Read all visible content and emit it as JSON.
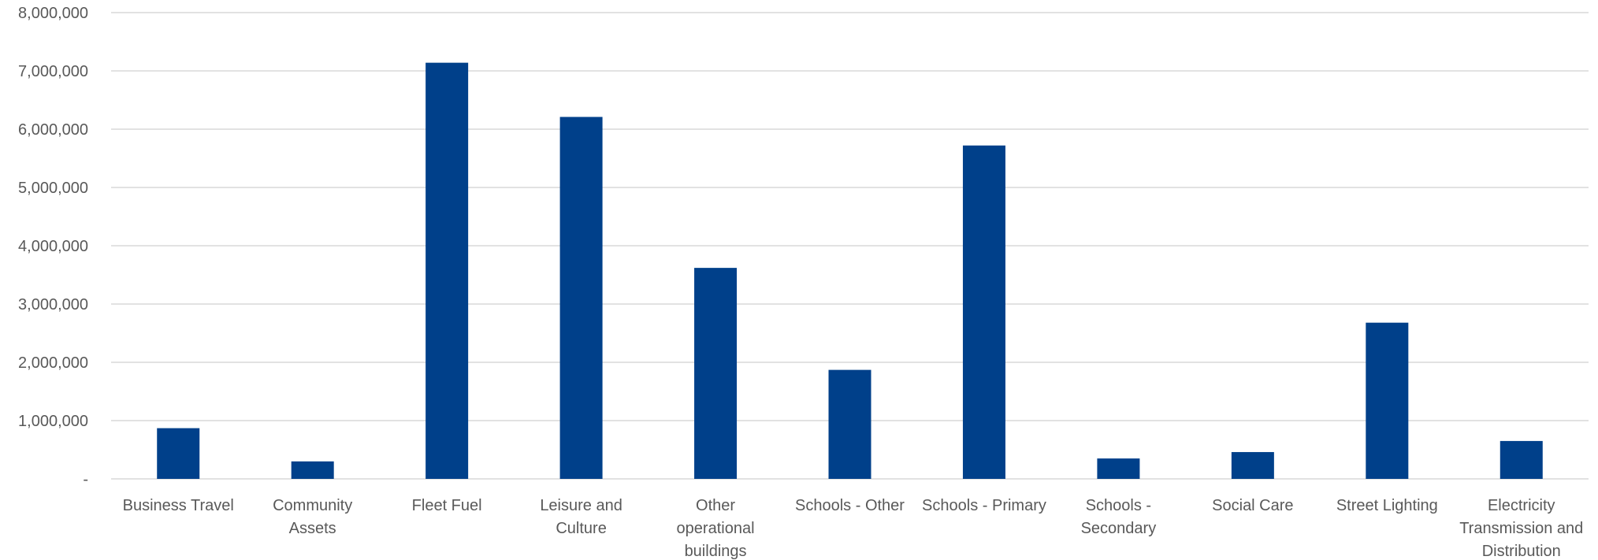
{
  "chart_data": {
    "type": "bar",
    "title": "",
    "xlabel": "",
    "ylabel": "",
    "categories": [
      "Business Travel",
      "Community Assets",
      "Fleet Fuel",
      "Leisure and Culture",
      "Other operational buildings",
      "Schools - Other",
      "Schools - Primary",
      "Schools - Secondary",
      "Social Care",
      "Street Lighting",
      "Electricity Transmission and Distribution"
    ],
    "category_label_lines": [
      [
        "Business Travel"
      ],
      [
        "Community",
        "Assets"
      ],
      [
        "Fleet Fuel"
      ],
      [
        "Leisure and",
        "Culture"
      ],
      [
        "Other",
        "operational",
        "buildings"
      ],
      [
        "Schools - Other"
      ],
      [
        "Schools - Primary"
      ],
      [
        "Schools -",
        "Secondary"
      ],
      [
        "Social Care"
      ],
      [
        "Street Lighting"
      ],
      [
        "Electricity",
        "Transmission and",
        "Distribution"
      ]
    ],
    "values": [
      870000,
      300000,
      7140000,
      6210000,
      3620000,
      1870000,
      5720000,
      350000,
      460000,
      2680000,
      650000
    ],
    "ylim": [
      0,
      8000000
    ],
    "yticks": [
      0,
      1000000,
      2000000,
      3000000,
      4000000,
      5000000,
      6000000,
      7000000,
      8000000
    ],
    "ytick_labels": [
      "-",
      "1,000,000",
      "2,000,000",
      "3,000,000",
      "4,000,000",
      "5,000,000",
      "6,000,000",
      "7,000,000",
      "8,000,000"
    ],
    "grid": true,
    "legend": "none",
    "bar_color": "#00408A",
    "grid_color": "#D9D9D9",
    "text_color": "#595959"
  }
}
